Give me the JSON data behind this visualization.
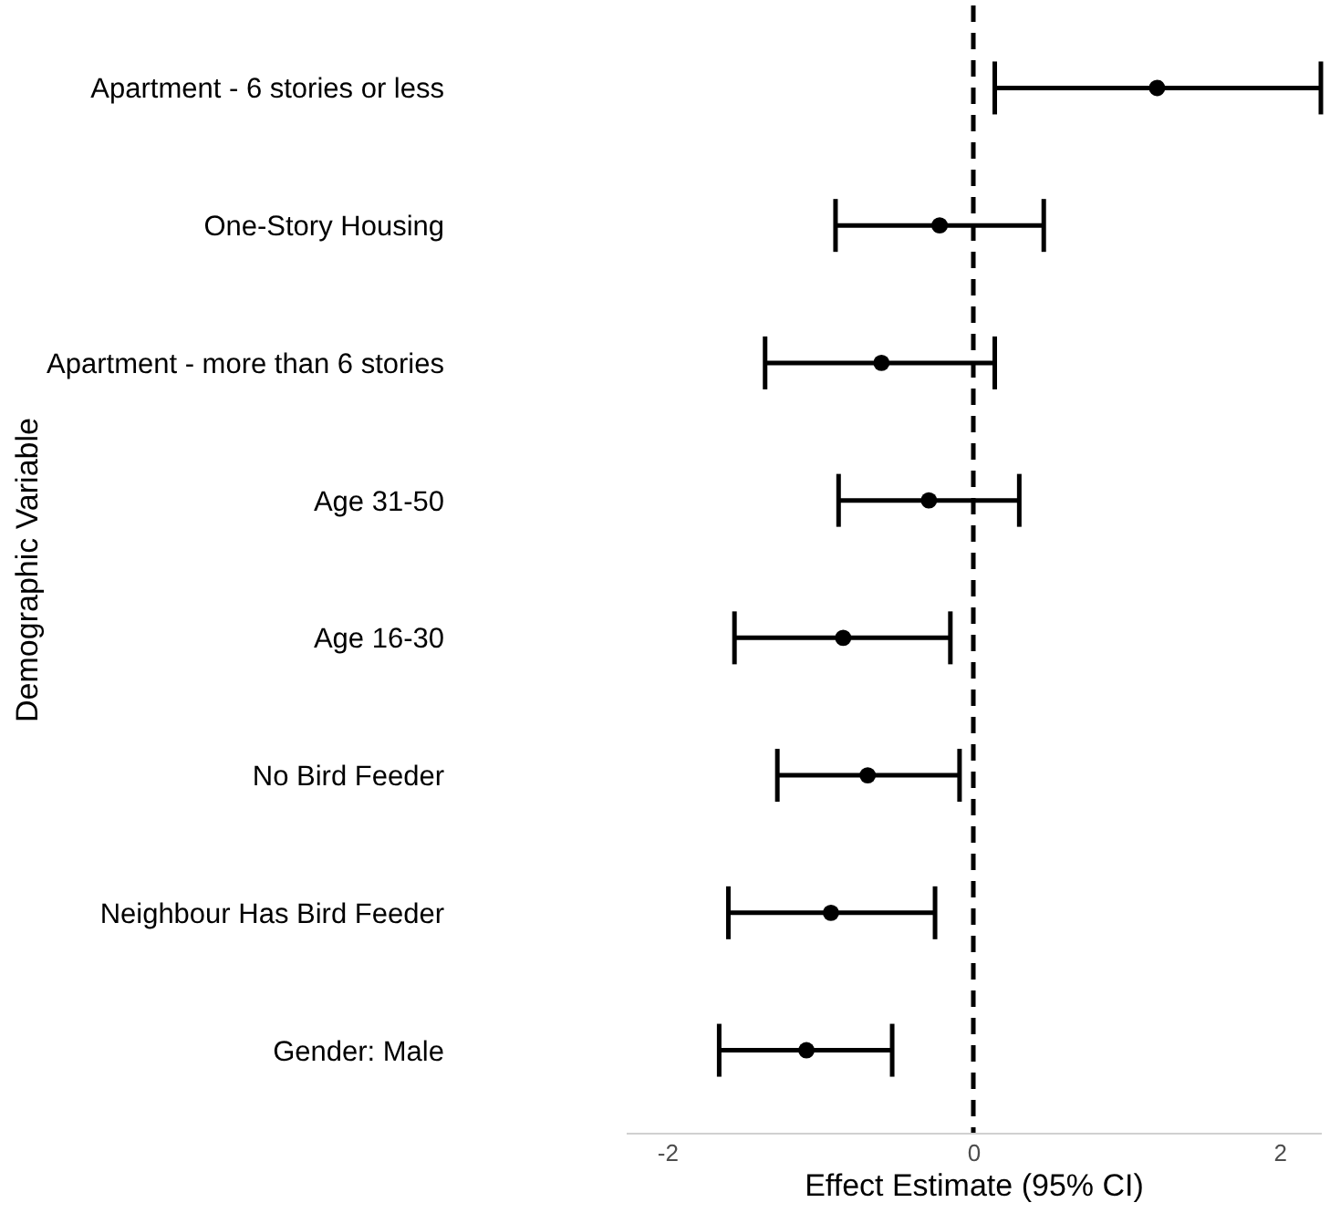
{
  "chart_data": {
    "type": "scatter",
    "orientation": "horizontal",
    "xlabel": "Effect Estimate (95% CI)",
    "ylabel": "Demographic Variable",
    "categories": [
      "Apartment - 6 stories or less",
      "One-Story Housing",
      "Apartment - more than 6 stories",
      "Age 31-50",
      "Age 16-30",
      "No Bird Feeder",
      "Neighbour Has Bird Feeder",
      "Gender: Male"
    ],
    "series": [
      {
        "color": "#000000",
        "values": [
          1.2,
          -0.22,
          -0.6,
          -0.29,
          -0.85,
          -0.69,
          -0.93,
          -1.09
        ],
        "errors": [
          [
            0.14,
            2.27
          ],
          [
            -0.9,
            0.46
          ],
          [
            -1.36,
            0.14
          ],
          [
            -0.88,
            0.3
          ],
          [
            -1.56,
            -0.15
          ],
          [
            -1.28,
            -0.09
          ],
          [
            -1.6,
            -0.25
          ],
          [
            -1.66,
            -0.53
          ]
        ]
      }
    ],
    "xlim": [
      -2.27,
      2.27
    ],
    "xticks": [
      -2,
      0,
      2
    ],
    "ref_lines": [
      {
        "axis": "x",
        "value": 0,
        "line_style": "dashed",
        "color": "#000000"
      }
    ],
    "marker": "circle",
    "grid": false
  }
}
